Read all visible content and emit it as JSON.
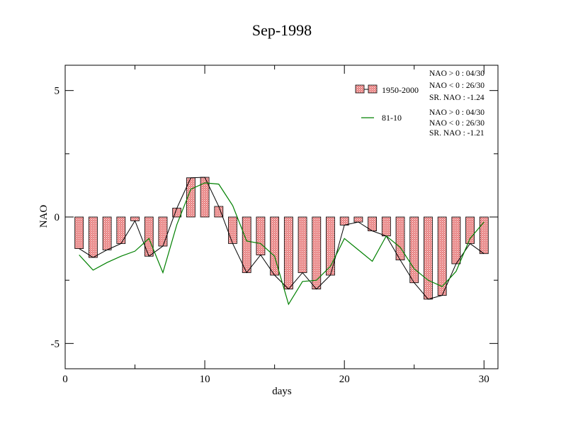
{
  "chart_data": {
    "type": "bar",
    "title": "Sep-1998",
    "xlabel": "days",
    "ylabel": "NAO",
    "xlim": [
      0,
      31
    ],
    "ylim": [
      -6,
      6
    ],
    "xticks": [
      0,
      10,
      20,
      30
    ],
    "yticks": [
      -5,
      0,
      5
    ],
    "grid": false,
    "legend_position": "top-right",
    "series": [
      {
        "name": "1950-2000",
        "kind": "bar",
        "color": "#e88080",
        "x": [
          1,
          2,
          3,
          4,
          5,
          6,
          7,
          8,
          9,
          10,
          11,
          12,
          13,
          14,
          15,
          16,
          17,
          18,
          19,
          20,
          21,
          22,
          23,
          24,
          25,
          26,
          27,
          28,
          29,
          30
        ],
        "values": [
          -1.25,
          -1.6,
          -1.3,
          -1.05,
          -0.15,
          -1.55,
          -1.15,
          0.35,
          1.55,
          1.57,
          0.42,
          -1.05,
          -2.2,
          -1.5,
          -2.3,
          -2.85,
          -2.2,
          -2.85,
          -2.3,
          -0.32,
          -0.2,
          -0.55,
          -0.75,
          -1.7,
          -2.6,
          -3.25,
          -3.1,
          -1.85,
          -1.05,
          -1.45
        ]
      },
      {
        "name": "81-10",
        "kind": "line",
        "color": "#008000",
        "x": [
          1,
          2,
          3,
          4,
          5,
          6,
          7,
          8,
          9,
          10,
          11,
          12,
          13,
          14,
          15,
          16,
          17,
          18,
          19,
          20,
          21,
          22,
          23,
          24,
          25,
          26,
          27,
          28,
          29,
          30
        ],
        "values": [
          -1.5,
          -2.1,
          -1.8,
          -1.55,
          -1.35,
          -0.85,
          -2.2,
          -0.3,
          1.1,
          1.35,
          1.3,
          0.45,
          -0.95,
          -1.05,
          -1.55,
          -3.45,
          -2.55,
          -2.5,
          -1.95,
          -0.85,
          -1.3,
          -1.75,
          -0.75,
          -1.2,
          -2.05,
          -2.5,
          -2.75,
          -2.15,
          -0.85,
          -0.2
        ]
      }
    ],
    "stats": [
      [
        "NAO > 0 : 04/30",
        "NAO < 0 : 26/30",
        "SR. NAO : -1.24"
      ],
      [
        "NAO > 0 : 04/30",
        "NAO < 0 : 26/30",
        "SR. NAO : -1.21"
      ]
    ]
  }
}
